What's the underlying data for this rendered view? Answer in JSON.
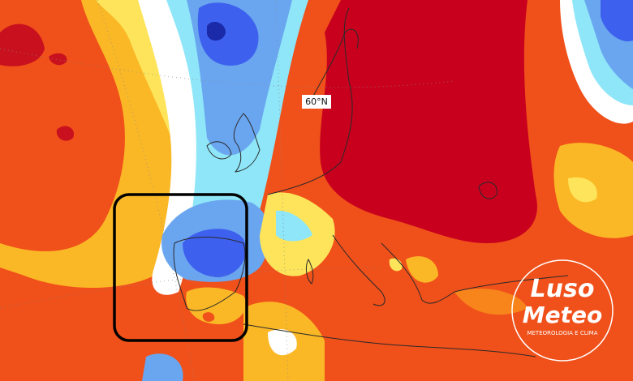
{
  "map": {
    "latitude_label": "60°N"
  },
  "logo": {
    "line1": "Luso",
    "line2": "Meteo",
    "tagline": "METEOROLOGIA E CLIMA"
  }
}
